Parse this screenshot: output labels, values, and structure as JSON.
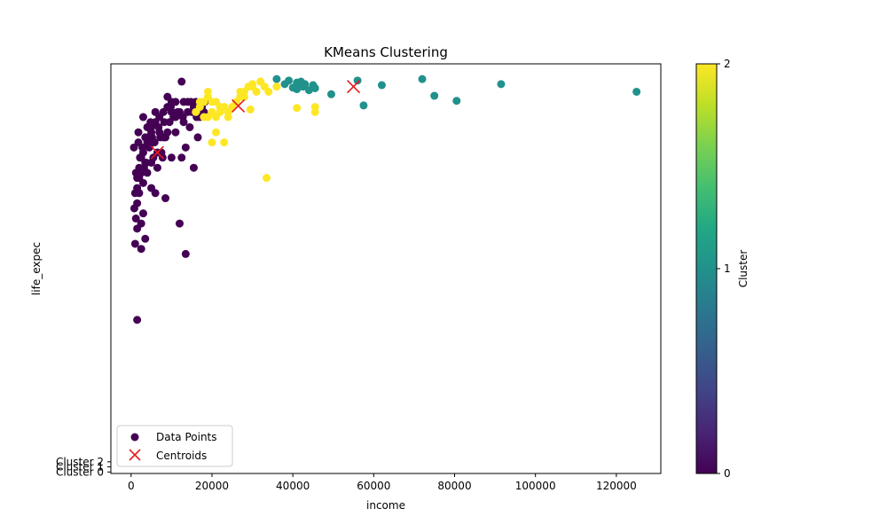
{
  "chart_data": {
    "type": "scatter",
    "title": "KMeans Clustering",
    "xlabel": "income",
    "ylabel": "life_expec",
    "xlim": [
      -5000,
      131000
    ],
    "ylim": [
      -0.3,
      80.5
    ],
    "x_ticks": [
      0,
      20000,
      40000,
      60000,
      80000,
      100000,
      120000
    ],
    "y_ticks": [
      {
        "value": 0,
        "label": "Cluster 0"
      },
      {
        "value": 1,
        "label": "Cluster 1"
      },
      {
        "value": 2,
        "label": "Cluster 2"
      }
    ],
    "grid": false,
    "legend": {
      "placement": "lower-left",
      "entries": [
        {
          "label": "Data Points",
          "marker": "circle",
          "color": "#440154"
        },
        {
          "label": "Centroids",
          "marker": "x",
          "color": "#e41a1c"
        }
      ]
    },
    "colorbar": {
      "label": "Cluster",
      "min": 0,
      "max": 2,
      "ticks": [
        "0",
        "1",
        "2"
      ],
      "colormap": "viridis"
    },
    "cluster_colors": [
      "#440154",
      "#21918c",
      "#fde725"
    ],
    "centroid_color": "#e41a1c",
    "centroids": [
      {
        "x": 6500,
        "y": 63.0
      },
      {
        "x": 26500,
        "y": 72.2
      },
      {
        "x": 55000,
        "y": 76.0
      }
    ],
    "series": [
      {
        "cluster": 0,
        "points": [
          [
            1500,
            53
          ],
          [
            1200,
            59
          ],
          [
            1800,
            65
          ],
          [
            700,
            64
          ],
          [
            2500,
            44
          ],
          [
            1500,
            30
          ],
          [
            1000,
            45
          ],
          [
            2000,
            58
          ],
          [
            12000,
            71
          ],
          [
            12500,
            77
          ],
          [
            3000,
            70
          ],
          [
            4000,
            68
          ],
          [
            5000,
            68
          ],
          [
            6000,
            69
          ],
          [
            7000,
            70
          ],
          [
            8000,
            71
          ],
          [
            9000,
            72
          ],
          [
            10000,
            73
          ],
          [
            11000,
            73
          ],
          [
            9500,
            69
          ],
          [
            8500,
            66
          ],
          [
            7500,
            63
          ],
          [
            6500,
            63
          ],
          [
            5500,
            62
          ],
          [
            4500,
            64
          ],
          [
            3500,
            66
          ],
          [
            2500,
            62
          ],
          [
            2000,
            60
          ],
          [
            1500,
            58
          ],
          [
            1000,
            55
          ],
          [
            800,
            52
          ],
          [
            1200,
            50
          ],
          [
            1500,
            48
          ],
          [
            2500,
            49
          ],
          [
            3000,
            51
          ],
          [
            3500,
            46
          ],
          [
            5000,
            56
          ],
          [
            6000,
            55
          ],
          [
            8500,
            54
          ],
          [
            12000,
            49
          ],
          [
            13500,
            43
          ],
          [
            3000,
            63
          ],
          [
            4000,
            65
          ],
          [
            5000,
            67
          ],
          [
            7000,
            67
          ],
          [
            9000,
            67
          ],
          [
            11000,
            67
          ],
          [
            13000,
            69
          ],
          [
            14000,
            71
          ],
          [
            15000,
            71
          ],
          [
            16000,
            73
          ],
          [
            17000,
            70
          ],
          [
            18000,
            71
          ],
          [
            16500,
            66
          ],
          [
            15500,
            60
          ],
          [
            13500,
            64
          ],
          [
            12500,
            62
          ],
          [
            10000,
            62
          ],
          [
            14500,
            68
          ],
          [
            11000,
            70
          ],
          [
            6000,
            71
          ],
          [
            4000,
            59
          ],
          [
            3000,
            57
          ],
          [
            2000,
            55
          ],
          [
            1500,
            56
          ],
          [
            2500,
            59
          ],
          [
            3500,
            61
          ],
          [
            5000,
            61
          ],
          [
            6500,
            60
          ],
          [
            8000,
            66
          ],
          [
            9000,
            74
          ],
          [
            10000,
            71
          ],
          [
            11500,
            71
          ],
          [
            13000,
            73
          ],
          [
            14000,
            73
          ],
          [
            15500,
            72
          ],
          [
            1800,
            67
          ],
          [
            2200,
            62
          ],
          [
            2800,
            64
          ],
          [
            3200,
            60
          ],
          [
            3800,
            61
          ],
          [
            4200,
            66
          ],
          [
            4800,
            69
          ],
          [
            5200,
            66
          ],
          [
            5800,
            65
          ],
          [
            6800,
            68
          ],
          [
            7200,
            66
          ],
          [
            7800,
            62
          ],
          [
            8200,
            69
          ],
          [
            9800,
            72
          ],
          [
            10500,
            70
          ],
          [
            12800,
            70
          ],
          [
            14800,
            73
          ],
          [
            16200,
            70
          ],
          [
            17500,
            72
          ],
          [
            18200,
            73
          ]
        ]
      },
      {
        "cluster": 1,
        "points": [
          [
            36000,
            77.5
          ],
          [
            39000,
            77.2
          ],
          [
            41000,
            76.8
          ],
          [
            42000,
            77.0
          ],
          [
            43000,
            76.5
          ],
          [
            45000,
            76.3
          ],
          [
            40000,
            75.8
          ],
          [
            41000,
            75.5
          ],
          [
            44000,
            75.3
          ],
          [
            45500,
            75.7
          ],
          [
            38000,
            76.5
          ],
          [
            42500,
            76.0
          ],
          [
            49500,
            74.5
          ],
          [
            56000,
            77.2
          ],
          [
            57500,
            72.3
          ],
          [
            62000,
            76.3
          ],
          [
            72000,
            77.5
          ],
          [
            75000,
            74.2
          ],
          [
            80500,
            73.2
          ],
          [
            91500,
            76.5
          ],
          [
            125000,
            75.0
          ]
        ]
      },
      {
        "cluster": 2,
        "points": [
          [
            16000,
            71
          ],
          [
            17000,
            73
          ],
          [
            18000,
            73
          ],
          [
            19000,
            74
          ],
          [
            20000,
            73
          ],
          [
            21000,
            73
          ],
          [
            22000,
            72
          ],
          [
            23000,
            72
          ],
          [
            24000,
            71
          ],
          [
            25000,
            72
          ],
          [
            26000,
            73
          ],
          [
            27000,
            74
          ],
          [
            28000,
            75
          ],
          [
            29000,
            76
          ],
          [
            30000,
            76
          ],
          [
            31000,
            75
          ],
          [
            32000,
            77
          ],
          [
            33000,
            76
          ],
          [
            34000,
            75
          ],
          [
            36000,
            76
          ],
          [
            19000,
            75
          ],
          [
            20000,
            71
          ],
          [
            21000,
            70
          ],
          [
            22000,
            71
          ],
          [
            19000,
            70
          ],
          [
            20000,
            65
          ],
          [
            23000,
            65
          ],
          [
            21000,
            67
          ],
          [
            24000,
            70
          ],
          [
            28000,
            74
          ],
          [
            29500,
            71.5
          ],
          [
            33500,
            58
          ],
          [
            41000,
            71.8
          ],
          [
            45500,
            71
          ],
          [
            45500,
            72
          ],
          [
            17000,
            72
          ],
          [
            18000,
            70
          ],
          [
            27000,
            75
          ],
          [
            30000,
            76.5
          ],
          [
            32000,
            77
          ]
        ]
      }
    ]
  }
}
